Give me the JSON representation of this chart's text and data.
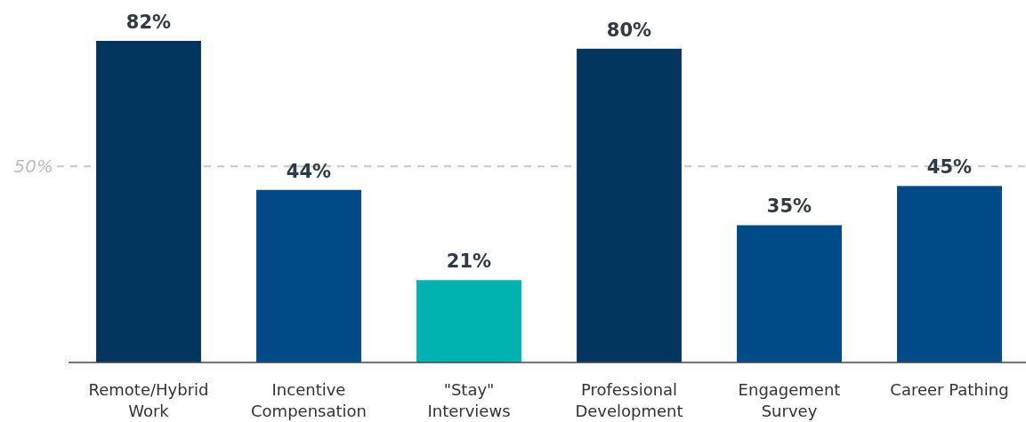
{
  "chart_data": {
    "type": "bar",
    "categories": [
      "Remote/Hybrid Work",
      "Incentive Compensation",
      "\"Stay\" Interviews",
      "Professional Development",
      "Engagement Survey",
      "Career Pathing"
    ],
    "values": [
      82,
      44,
      21,
      80,
      35,
      45
    ],
    "value_labels": [
      "82%",
      "44%",
      "21%",
      "80%",
      "35%",
      "45%"
    ],
    "colors": [
      "#03365e",
      "#004a87",
      "#00b2b0",
      "#03365e",
      "#004a87",
      "#004a87"
    ],
    "tick_labels": "x",
    "ref_lines": [
      {
        "axis": "y",
        "value": 50,
        "label": "50%",
        "color": "#c8c8c8",
        "line_style": "dashed"
      }
    ]
  }
}
